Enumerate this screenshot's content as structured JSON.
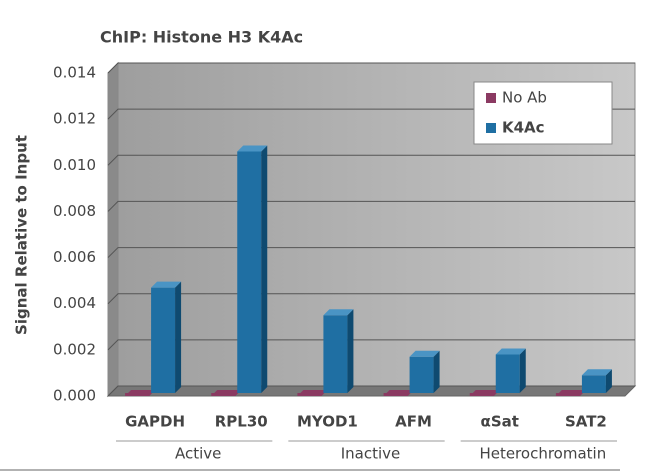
{
  "chart_data": {
    "type": "bar",
    "title": "ChIP: Histone H3 K4Ac",
    "y_label": "Signal Relative to Input",
    "categories": [
      "GAPDH",
      "RPL30",
      "MYOD1",
      "AFM",
      "αSat",
      "SAT2"
    ],
    "group_labels": [
      "Active",
      "Inactive",
      "Heterochromatin"
    ],
    "series": [
      {
        "name": "No Ab",
        "color": "#8b3a62",
        "values": [
          0,
          0,
          0,
          0,
          0,
          0
        ]
      },
      {
        "name": "K4Ac",
        "color": "#1f6fa3",
        "values": [
          0.0047,
          0.0106,
          0.0035,
          0.0017,
          0.0018,
          0.0009
        ]
      }
    ],
    "ylim": [
      0,
      0.014
    ],
    "yticks": [
      {
        "value": 0,
        "label": "0.000"
      },
      {
        "value": 0.002,
        "label": "0.002"
      },
      {
        "value": 0.004,
        "label": "0.004"
      },
      {
        "value": 0.006,
        "label": "0.006"
      },
      {
        "value": 0.008,
        "label": "0.008"
      },
      {
        "value": 0.01,
        "label": "0.010"
      },
      {
        "value": 0.012,
        "label": "0.012"
      },
      {
        "value": 0.014,
        "label": "0.014"
      }
    ],
    "grid": true
  }
}
